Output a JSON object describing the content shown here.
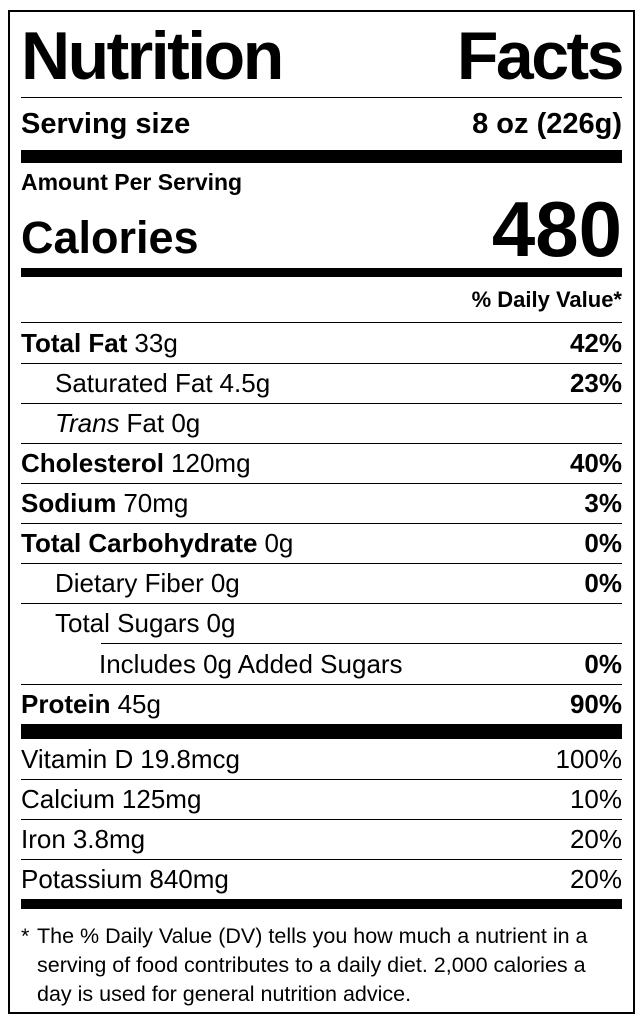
{
  "title": {
    "left": "Nutrition",
    "right": "Facts"
  },
  "serving": {
    "label": "Serving size",
    "value": "8 oz (226g)"
  },
  "calories_section": {
    "eyebrow": "Amount Per Serving",
    "label": "Calories",
    "value": "480"
  },
  "daily_value_header": "% Daily Value*",
  "nutrients": [
    {
      "name": "Total Fat",
      "bold": true,
      "italic": false,
      "amount": "33g",
      "dv": "42%",
      "indent": 0
    },
    {
      "name": "Saturated Fat",
      "bold": false,
      "italic": false,
      "amount": "4.5g",
      "dv": "23%",
      "indent": 1
    },
    {
      "name": "Trans",
      "bold": false,
      "italic": true,
      "amount": "Fat 0g",
      "dv": "",
      "indent": 1
    },
    {
      "name": "Cholesterol",
      "bold": true,
      "italic": false,
      "amount": "120mg",
      "dv": "40%",
      "indent": 0
    },
    {
      "name": "Sodium",
      "bold": true,
      "italic": false,
      "amount": "70mg",
      "dv": "3%",
      "indent": 0
    },
    {
      "name": "Total Carbohydrate",
      "bold": true,
      "italic": false,
      "amount": "0g",
      "dv": "0%",
      "indent": 0
    },
    {
      "name": "Dietary Fiber",
      "bold": false,
      "italic": false,
      "amount": "0g",
      "dv": "0%",
      "indent": 1
    },
    {
      "name": "Total Sugars",
      "bold": false,
      "italic": false,
      "amount": "0g",
      "dv": "",
      "indent": 1
    },
    {
      "name": "Includes 0g Added Sugars",
      "bold": false,
      "italic": false,
      "amount": "",
      "dv": "0%",
      "indent": 2,
      "divider": "indent"
    },
    {
      "name": "Protein",
      "bold": true,
      "italic": false,
      "amount": "45g",
      "dv": "90%",
      "indent": 0
    }
  ],
  "vitamins": [
    {
      "name": "Vitamin D",
      "amount": "19.8mcg",
      "dv": "100%"
    },
    {
      "name": "Calcium",
      "amount": "125mg",
      "dv": "10%"
    },
    {
      "name": "Iron",
      "amount": "3.8mg",
      "dv": "20%"
    },
    {
      "name": "Potassium",
      "amount": "840mg",
      "dv": "20%"
    }
  ],
  "footnote": {
    "marker": "*",
    "text": "The % Daily Value (DV) tells you how much a nutrient in a serving of food contributes to a daily diet. 2,000 calories a day is used for general nutrition advice."
  }
}
